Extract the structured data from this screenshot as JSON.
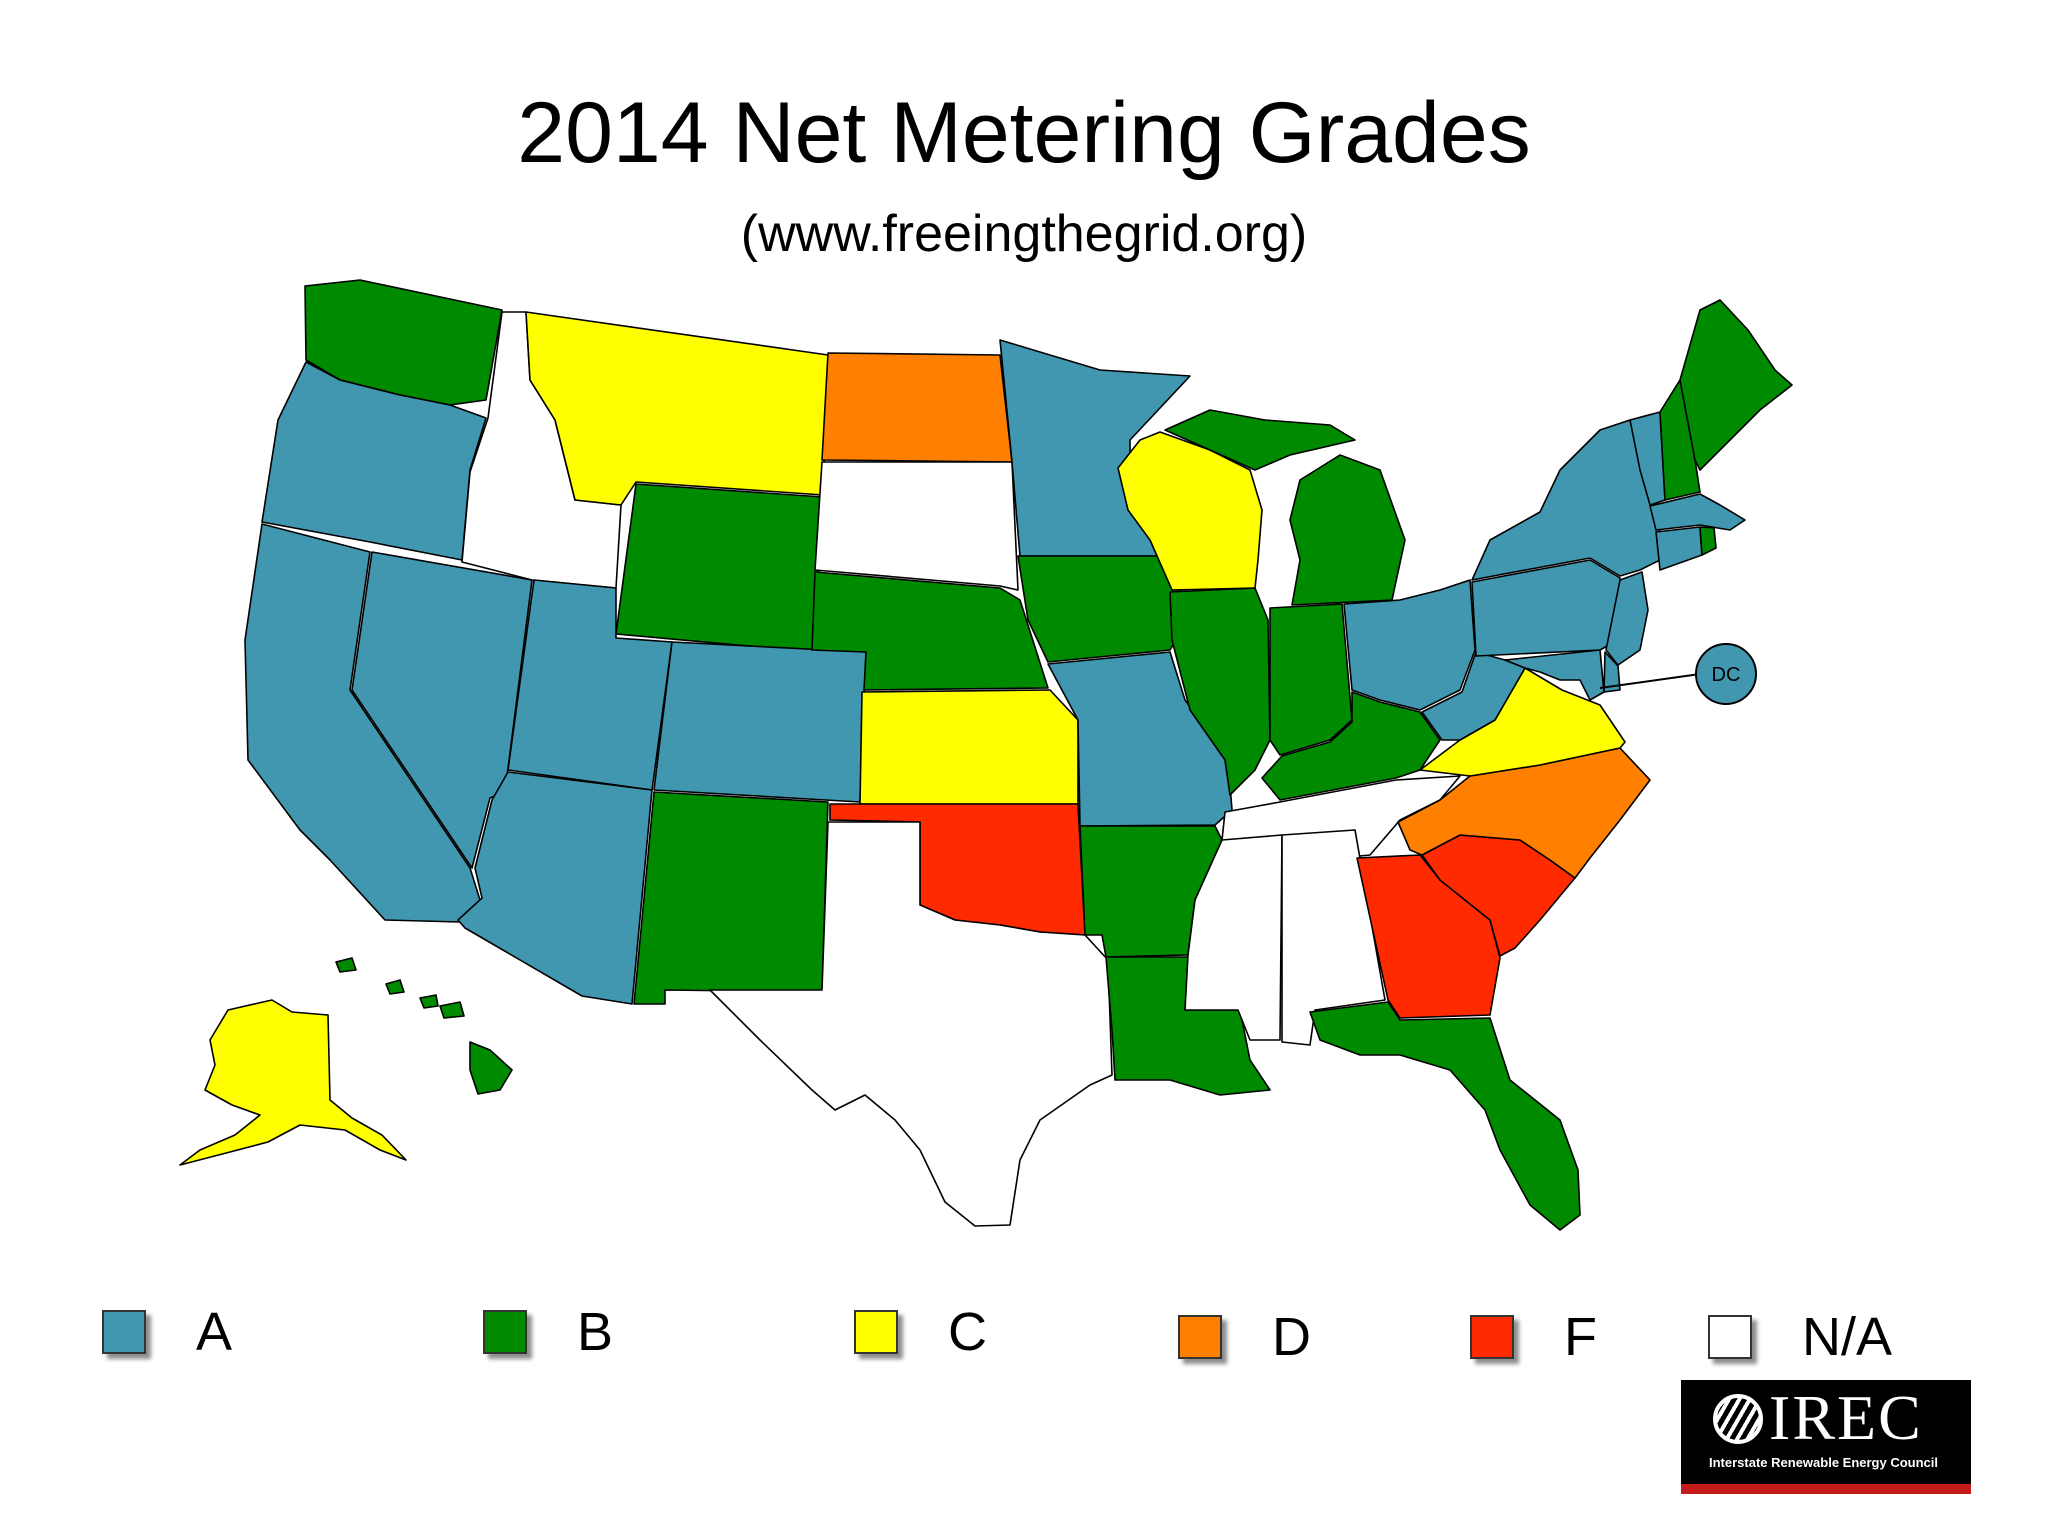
{
  "title": "2014 Net Metering Grades",
  "subtitle": "(www.freeingthegrid.org)",
  "colors": {
    "A": "#4297b0",
    "B": "#008a00",
    "C": "#ffff00",
    "D": "#ff8000",
    "F": "#ff2a00",
    "N/A": "#ffffff"
  },
  "legend": [
    {
      "grade": "A",
      "label": "A"
    },
    {
      "grade": "B",
      "label": "B"
    },
    {
      "grade": "C",
      "label": "C"
    },
    {
      "grade": "D",
      "label": "D"
    },
    {
      "grade": "F",
      "label": "F"
    },
    {
      "grade": "N/A",
      "label": "N/A"
    }
  ],
  "callout": {
    "label": "DC",
    "grade": "A"
  },
  "states": {
    "WA": "B",
    "OR": "A",
    "CA": "A",
    "NV": "A",
    "ID": "N/A",
    "MT": "C",
    "WY": "B",
    "UT": "A",
    "AZ": "A",
    "CO": "A",
    "NM": "B",
    "ND": "D",
    "SD": "N/A",
    "NE": "B",
    "KS": "C",
    "OK": "F",
    "TX": "N/A",
    "MN": "A",
    "IA": "B",
    "MO": "A",
    "AR": "B",
    "LA": "B",
    "WI": "C",
    "IL": "B",
    "MI": "B",
    "IN": "B",
    "OH": "A",
    "KY": "B",
    "TN": "N/A",
    "MS": "N/A",
    "AL": "N/A",
    "GA": "F",
    "FL": "B",
    "SC": "F",
    "NC": "D",
    "VA": "C",
    "WV": "A",
    "PA": "A",
    "NY": "A",
    "VT": "A",
    "NH": "B",
    "ME": "B",
    "MA": "A",
    "CT": "A",
    "RI": "B",
    "NJ": "A",
    "DE": "A",
    "MD": "A",
    "AK": "C",
    "HI": "B"
  },
  "logo": {
    "name": "IREC",
    "tagline": "Interstate Renewable Energy Council"
  }
}
